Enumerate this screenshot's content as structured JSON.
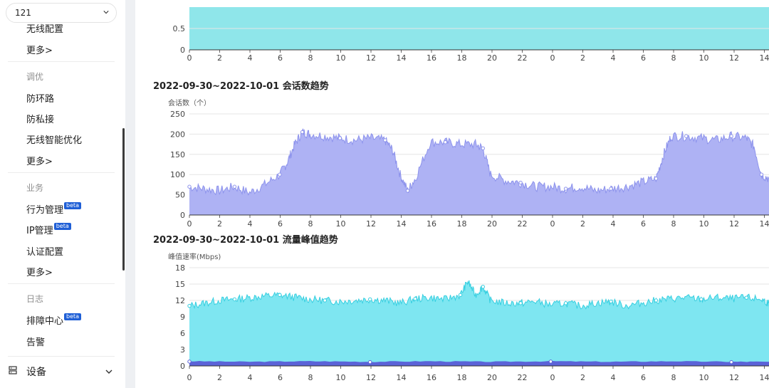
{
  "sidebar": {
    "device_select": "121",
    "items_top": [
      {
        "label": "无线配置"
      },
      {
        "label": "更多>"
      }
    ],
    "group_tuning": {
      "title": "调优",
      "items": [
        {
          "label": "防环路"
        },
        {
          "label": "防私接"
        },
        {
          "label": "无线智能优化"
        },
        {
          "label": "更多>"
        }
      ]
    },
    "group_business": {
      "title": "业务",
      "items": [
        {
          "label": "行为管理",
          "badge": "beta"
        },
        {
          "label": "IP管理",
          "badge": "beta"
        },
        {
          "label": "认证配置"
        },
        {
          "label": "更多>"
        }
      ]
    },
    "group_log": {
      "title": "日志",
      "items": [
        {
          "label": "排障中心",
          "badge": "beta"
        },
        {
          "label": "告警"
        }
      ]
    },
    "section_device": {
      "label": "设备",
      "icon": "device-icon"
    }
  },
  "colors": {
    "chart_top_fill": "#8fe6ea",
    "sessions_fill": "#aeb2f4",
    "sessions_line": "#8d93ec",
    "traffic_fill": "#7ee6f1",
    "traffic_line": "#37cfe0",
    "traffic_low_line": "#5b63d8"
  },
  "chart_data": [
    {
      "type": "area",
      "title": "",
      "y_ticks": [
        0,
        0.5
      ],
      "x_ticks": [
        "0",
        "2",
        "4",
        "6",
        "8",
        "10",
        "12",
        "14",
        "16",
        "18",
        "20",
        "22",
        "0",
        "2",
        "4",
        "6",
        "8",
        "10",
        "12",
        "14"
      ],
      "ylim": [
        0,
        1
      ]
    },
    {
      "type": "area",
      "title": "2022-09-30~2022-10-01 会话数趋势",
      "ylabel": "会话数（个）",
      "y_ticks": [
        0,
        50,
        100,
        150,
        200,
        250
      ],
      "ylim": [
        0,
        250
      ],
      "x_ticks": [
        "0",
        "2",
        "4",
        "6",
        "8",
        "10",
        "12",
        "14",
        "16",
        "18",
        "20",
        "22",
        "0",
        "2",
        "4",
        "6",
        "8",
        "10",
        "12",
        "14"
      ],
      "xlim": [
        0,
        38.5
      ],
      "series": [
        {
          "x": [
            0,
            1,
            2,
            3,
            4,
            5,
            6,
            6.5,
            7,
            7.5,
            8,
            9,
            10,
            11,
            12,
            13,
            13.5,
            14,
            14.5,
            15,
            16,
            17,
            18,
            19,
            19.5,
            20,
            21,
            22,
            23,
            24,
            25,
            26,
            27,
            28,
            29,
            30,
            31,
            31.5,
            32,
            33,
            34,
            35,
            36,
            37,
            37.5,
            38,
            38.5
          ],
          "y": [
            70,
            65,
            60,
            70,
            55,
            75,
            100,
            130,
            175,
            205,
            200,
            195,
            190,
            185,
            190,
            185,
            160,
            100,
            60,
            90,
            180,
            180,
            175,
            175,
            165,
            100,
            85,
            80,
            70,
            70,
            65,
            70,
            60,
            65,
            70,
            80,
            90,
            150,
            195,
            195,
            190,
            185,
            195,
            190,
            170,
            100,
            90
          ]
        }
      ]
    },
    {
      "type": "area",
      "title": "2022-09-30~2022-10-01 流量峰值趋势",
      "ylabel": "峰值速率(Mbps)",
      "y_ticks": [
        0,
        3,
        6,
        9,
        12,
        15,
        18
      ],
      "ylim": [
        0,
        18
      ],
      "x_ticks": [
        "0",
        "2",
        "4",
        "6",
        "8",
        "10",
        "12",
        "14",
        "16",
        "18",
        "20",
        "22",
        "0",
        "2",
        "4",
        "6",
        "8",
        "10",
        "12",
        "14"
      ],
      "xlim": [
        0,
        38.5
      ],
      "series": [
        {
          "name": "",
          "x": [
            0,
            1,
            2,
            3,
            4,
            5,
            6,
            7,
            8,
            9,
            10,
            11,
            12,
            13,
            14,
            15,
            16,
            17,
            18,
            18.5,
            19,
            19.5,
            20,
            21,
            22,
            23,
            24,
            25,
            26,
            27,
            28,
            29,
            30,
            31,
            32,
            33,
            34,
            35,
            36,
            37,
            38,
            38.5
          ],
          "y": [
            11,
            11.5,
            12,
            12.2,
            12.5,
            12.8,
            13,
            12.6,
            12.2,
            12,
            11.8,
            12,
            12.2,
            12,
            11.5,
            12.3,
            12.5,
            12.2,
            13,
            15.5,
            13,
            14.5,
            12,
            11.5,
            11.5,
            11.8,
            11.2,
            11.5,
            11,
            11.5,
            11.8,
            11,
            11.5,
            12,
            12.3,
            12.5,
            12.2,
            12.5,
            12.3,
            12.5,
            12.2,
            11.5
          ]
        },
        {
          "name": "",
          "x": [
            0,
            4,
            8,
            12,
            16,
            20,
            24,
            28,
            32,
            36,
            38.5
          ],
          "y": [
            0.8,
            0.7,
            0.8,
            0.7,
            0.8,
            0.7,
            0.8,
            0.7,
            0.8,
            0.7,
            0.7
          ]
        }
      ]
    }
  ]
}
